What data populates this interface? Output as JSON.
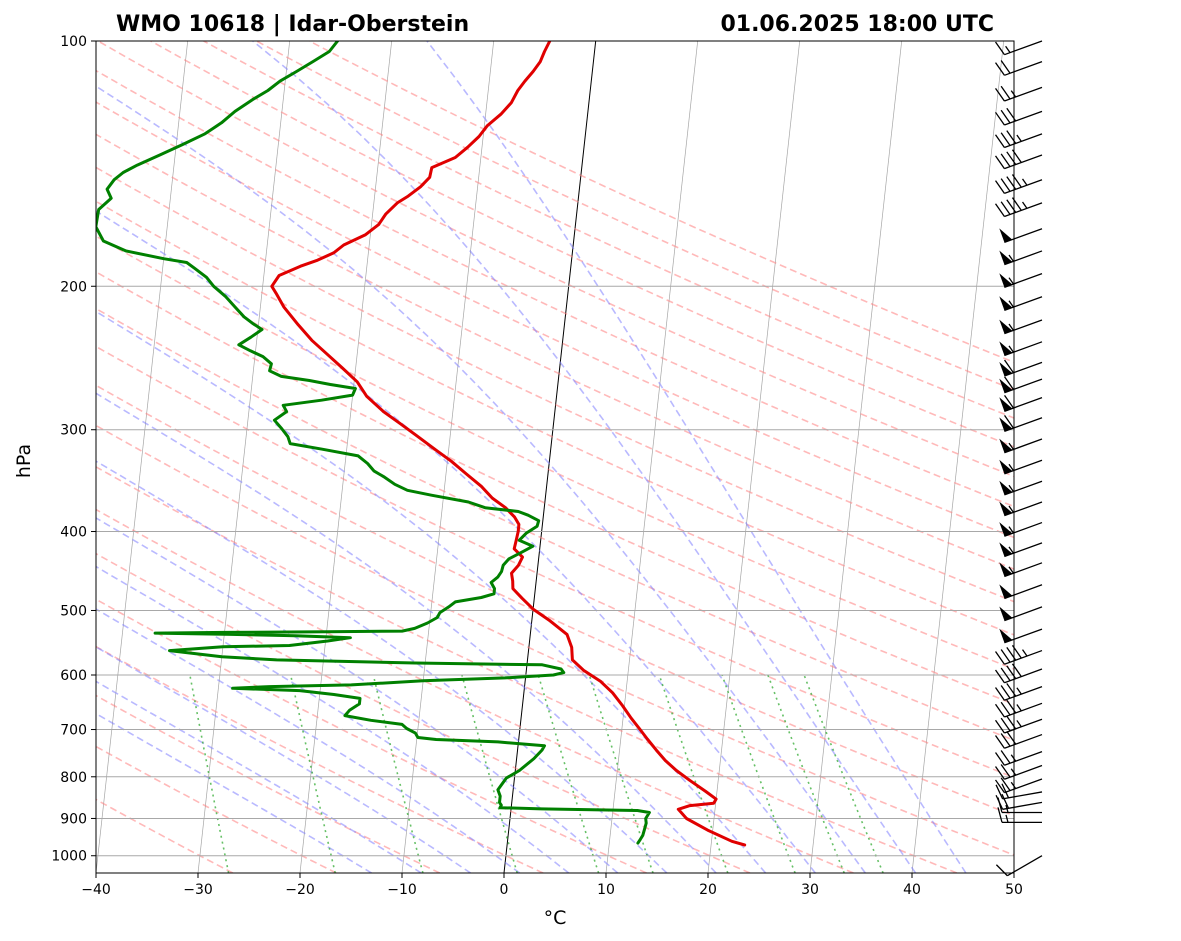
{
  "title_left": "WMO 10618 | Idar-Oberstein",
  "title_right": "01.06.2025 18:00 UTC",
  "chart_data": {
    "type": "line",
    "subtype": "skew-t log-p diagram",
    "xlabel": "°C",
    "ylabel": "hPa",
    "xlim": [
      -40,
      50
    ],
    "ylim": [
      1000,
      100
    ],
    "y_scale": "log",
    "x_ticks": [
      "−40",
      "−30",
      "−20",
      "−10",
      "0",
      "10",
      "20",
      "30",
      "40",
      "50"
    ],
    "y_ticks": [
      "100",
      "200",
      "300",
      "400",
      "500",
      "600",
      "700",
      "800",
      "900",
      "1000"
    ],
    "grid": true,
    "series": [
      {
        "key": "temperature",
        "color": "#e00000",
        "points": [
          [
            23.3,
            970
          ],
          [
            22,
            960
          ],
          [
            19.5,
            930
          ],
          [
            17.3,
            900
          ],
          [
            16.4,
            877
          ],
          [
            17.5,
            868
          ],
          [
            19.8,
            862
          ],
          [
            20,
            852
          ],
          [
            18.9,
            834
          ],
          [
            17.2,
            808
          ],
          [
            15.8,
            786
          ],
          [
            14.6,
            764
          ],
          [
            13.6,
            742
          ],
          [
            12.6,
            719
          ],
          [
            11.7,
            698
          ],
          [
            10.8,
            678
          ],
          [
            9.8,
            654
          ],
          [
            8.7,
            631
          ],
          [
            7.4,
            611
          ],
          [
            5.6,
            592
          ],
          [
            4.4,
            575
          ],
          [
            4.2,
            555
          ],
          [
            3.6,
            535
          ],
          [
            1.8,
            515
          ],
          [
            0,
            498
          ],
          [
            -1.2,
            483
          ],
          [
            -2.2,
            470
          ],
          [
            -2.3,
            460
          ],
          [
            -2.5,
            450
          ],
          [
            -1.9,
            440
          ],
          [
            -1.6,
            430
          ],
          [
            -2.5,
            420
          ],
          [
            -2.4,
            410
          ],
          [
            -2.3,
            400
          ],
          [
            -2.3,
            392
          ],
          [
            -2.8,
            384
          ],
          [
            -3.8,
            374
          ],
          [
            -5.2,
            364
          ],
          [
            -6.4,
            352
          ],
          [
            -8,
            340
          ],
          [
            -9.6,
            328
          ],
          [
            -11.2,
            318
          ],
          [
            -13.3,
            305
          ],
          [
            -15,
            295
          ],
          [
            -16.8,
            285
          ],
          [
            -18.6,
            273
          ],
          [
            -19.7,
            262
          ],
          [
            -21.3,
            252
          ],
          [
            -23,
            242
          ],
          [
            -24.6,
            233
          ],
          [
            -26.1,
            223
          ],
          [
            -27.7,
            212
          ],
          [
            -28.6,
            204
          ],
          [
            -29.1,
            200
          ],
          [
            -28.5,
            194
          ],
          [
            -26.5,
            189
          ],
          [
            -25,
            186
          ],
          [
            -23.4,
            182
          ],
          [
            -22.5,
            178
          ],
          [
            -20.5,
            173
          ],
          [
            -19.3,
            168
          ],
          [
            -18.7,
            163
          ],
          [
            -17.7,
            158
          ],
          [
            -16.7,
            155
          ],
          [
            -15.6,
            151
          ],
          [
            -14.8,
            147
          ],
          [
            -14.7,
            143
          ],
          [
            -12.5,
            139
          ],
          [
            -11.4,
            135
          ],
          [
            -10.4,
            131
          ],
          [
            -9.7,
            127
          ],
          [
            -8.5,
            123
          ],
          [
            -7.6,
            119
          ],
          [
            -7.1,
            115
          ],
          [
            -6.5,
            112
          ],
          [
            -5.8,
            109
          ],
          [
            -5.2,
            106
          ],
          [
            -4.9,
            103
          ],
          [
            -4.5,
            100
          ]
        ]
      },
      {
        "key": "dewpoint",
        "color": "#008000",
        "points": [
          [
            12.8,
            965
          ],
          [
            13,
            955
          ],
          [
            13.2,
            944
          ],
          [
            13.3,
            928
          ],
          [
            13.4,
            912
          ],
          [
            13.3,
            900
          ],
          [
            13.6,
            885
          ],
          [
            12.4,
            880
          ],
          [
            8,
            878
          ],
          [
            3,
            876
          ],
          [
            -1.1,
            873
          ],
          [
            -1,
            867
          ],
          [
            -1.2,
            860
          ],
          [
            -1.2,
            845
          ],
          [
            -1.5,
            830
          ],
          [
            -1.2,
            818
          ],
          [
            -0.8,
            803
          ],
          [
            0.4,
            786
          ],
          [
            1.7,
            760
          ],
          [
            2.4,
            742
          ],
          [
            2.6,
            733
          ],
          [
            -2,
            725
          ],
          [
            -8.1,
            720
          ],
          [
            -9.9,
            716
          ],
          [
            -10.2,
            707
          ],
          [
            -11.1,
            698
          ],
          [
            -11.6,
            690
          ],
          [
            -14.7,
            682
          ],
          [
            -17.3,
            673
          ],
          [
            -16.9,
            663
          ],
          [
            -16,
            651
          ],
          [
            -16,
            641
          ],
          [
            -18.6,
            634
          ],
          [
            -22,
            627
          ],
          [
            -28.6,
            623
          ],
          [
            -25,
            620
          ],
          [
            -17,
            617
          ],
          [
            -10,
            610
          ],
          [
            -2,
            605
          ],
          [
            2.7,
            600
          ],
          [
            3.7,
            596
          ],
          [
            3.4,
            590
          ],
          [
            1.5,
            583
          ],
          [
            -11,
            580
          ],
          [
            -24.6,
            575
          ],
          [
            -30,
            570
          ],
          [
            -35.2,
            560
          ],
          [
            -30,
            554
          ],
          [
            -23.5,
            552
          ],
          [
            -19.8,
            545
          ],
          [
            -17.6,
            540
          ],
          [
            -23,
            537
          ],
          [
            -29.3,
            535
          ],
          [
            -36.8,
            533
          ],
          [
            -30,
            532
          ],
          [
            -20,
            531
          ],
          [
            -12.6,
            530
          ],
          [
            -11.4,
            526
          ],
          [
            -10.2,
            518
          ],
          [
            -9.3,
            510
          ],
          [
            -9.1,
            503
          ],
          [
            -8.3,
            495
          ],
          [
            -7.7,
            488
          ],
          [
            -5.2,
            482
          ],
          [
            -4,
            477
          ],
          [
            -4,
            470
          ],
          [
            -4.4,
            462
          ],
          [
            -3.8,
            455
          ],
          [
            -3.5,
            448
          ],
          [
            -3.4,
            440
          ],
          [
            -2.9,
            432
          ],
          [
            -1.7,
            424
          ],
          [
            -0.7,
            417
          ],
          [
            -2.1,
            410
          ],
          [
            -1.5,
            402
          ],
          [
            -0.5,
            394
          ],
          [
            -0.4,
            388
          ],
          [
            -1.5,
            382
          ],
          [
            -2.5,
            378
          ],
          [
            -5.8,
            374
          ],
          [
            -7.5,
            368
          ],
          [
            -11.2,
            361
          ],
          [
            -13.6,
            356
          ],
          [
            -14.9,
            350
          ],
          [
            -16,
            343
          ],
          [
            -17.1,
            337
          ],
          [
            -17.8,
            330
          ],
          [
            -18.8,
            323
          ],
          [
            -22.4,
            317
          ],
          [
            -25.6,
            312
          ],
          [
            -25.9,
            306
          ],
          [
            -26.6,
            299
          ],
          [
            -27.4,
            292
          ],
          [
            -26.3,
            285
          ],
          [
            -26.7,
            280
          ],
          [
            -23,
            276
          ],
          [
            -20,
            272
          ],
          [
            -19.8,
            267
          ],
          [
            -22.3,
            264
          ],
          [
            -24.4,
            261
          ],
          [
            -27.2,
            258
          ],
          [
            -28.4,
            254
          ],
          [
            -28.3,
            249
          ],
          [
            -29.2,
            244
          ],
          [
            -30.5,
            240
          ],
          [
            -31.7,
            236
          ],
          [
            -30.6,
            231
          ],
          [
            -29.6,
            226
          ],
          [
            -30.6,
            222
          ],
          [
            -31.5,
            218
          ],
          [
            -32.5,
            212
          ],
          [
            -33.5,
            206
          ],
          [
            -34.8,
            200
          ],
          [
            -35.6,
            195
          ],
          [
            -36.9,
            190
          ],
          [
            -37.7,
            187
          ],
          [
            -40,
            185
          ],
          [
            -43.8,
            181
          ],
          [
            -46.1,
            176
          ],
          [
            -47,
            169
          ],
          [
            -46.9,
            161
          ],
          [
            -45.8,
            156
          ],
          [
            -46.3,
            152
          ],
          [
            -45.7,
            148
          ],
          [
            -44.9,
            145
          ],
          [
            -43.6,
            142
          ],
          [
            -41.5,
            138
          ],
          [
            -39.4,
            134
          ],
          [
            -37.3,
            130
          ],
          [
            -35.8,
            126
          ],
          [
            -34.6,
            122
          ],
          [
            -33,
            118
          ],
          [
            -31.6,
            115
          ],
          [
            -30.5,
            112
          ],
          [
            -29,
            109
          ],
          [
            -27.5,
            106
          ],
          [
            -26,
            103
          ],
          [
            -25.3,
            100
          ]
        ]
      }
    ],
    "reference_lines": [
      {
        "kind": "dry adiabats",
        "color": "#ff8080",
        "style": "dashed"
      },
      {
        "kind": "moist adiabats",
        "color": "#8080ff",
        "style": "dashed"
      },
      {
        "kind": "mixing ratio lines",
        "color": "#40b040",
        "style": "dotted"
      },
      {
        "kind": "isotherms",
        "color": "#808080",
        "style": "solid"
      },
      {
        "kind": "0 °C isotherm",
        "color": "#000000",
        "style": "solid"
      }
    ],
    "wind_barbs": [
      {
        "p": 100,
        "speed": 15,
        "dir": 250
      },
      {
        "p": 106,
        "speed": 20,
        "dir": 250
      },
      {
        "p": 114,
        "speed": 25,
        "dir": 250
      },
      {
        "p": 122,
        "speed": 30,
        "dir": 250
      },
      {
        "p": 130,
        "speed": 35,
        "dir": 250
      },
      {
        "p": 138,
        "speed": 40,
        "dir": 250
      },
      {
        "p": 148,
        "speed": 45,
        "dir": 250
      },
      {
        "p": 158,
        "speed": 45,
        "dir": 250
      },
      {
        "p": 170,
        "speed": 50,
        "dir": 250
      },
      {
        "p": 181,
        "speed": 55,
        "dir": 250
      },
      {
        "p": 193,
        "speed": 55,
        "dir": 250
      },
      {
        "p": 206,
        "speed": 55,
        "dir": 250
      },
      {
        "p": 220,
        "speed": 55,
        "dir": 250
      },
      {
        "p": 234,
        "speed": 55,
        "dir": 250
      },
      {
        "p": 248,
        "speed": 60,
        "dir": 250
      },
      {
        "p": 260,
        "speed": 60,
        "dir": 250
      },
      {
        "p": 274,
        "speed": 60,
        "dir": 250
      },
      {
        "p": 290,
        "speed": 60,
        "dir": 250
      },
      {
        "p": 308,
        "speed": 55,
        "dir": 250
      },
      {
        "p": 327,
        "speed": 55,
        "dir": 250
      },
      {
        "p": 347,
        "speed": 55,
        "dir": 250
      },
      {
        "p": 368,
        "speed": 55,
        "dir": 250
      },
      {
        "p": 390,
        "speed": 55,
        "dir": 250
      },
      {
        "p": 413,
        "speed": 55,
        "dir": 250
      },
      {
        "p": 437,
        "speed": 55,
        "dir": 250
      },
      {
        "p": 465,
        "speed": 50,
        "dir": 250
      },
      {
        "p": 495,
        "speed": 50,
        "dir": 250
      },
      {
        "p": 527,
        "speed": 50,
        "dir": 250
      },
      {
        "p": 560,
        "speed": 45,
        "dir": 250
      },
      {
        "p": 590,
        "speed": 40,
        "dir": 250
      },
      {
        "p": 620,
        "speed": 35,
        "dir": 250
      },
      {
        "p": 650,
        "speed": 35,
        "dir": 250
      },
      {
        "p": 680,
        "speed": 35,
        "dir": 250
      },
      {
        "p": 710,
        "speed": 30,
        "dir": 250
      },
      {
        "p": 745,
        "speed": 25,
        "dir": 250
      },
      {
        "p": 775,
        "speed": 25,
        "dir": 250
      },
      {
        "p": 805,
        "speed": 25,
        "dir": 250
      },
      {
        "p": 835,
        "speed": 20,
        "dir": 260
      },
      {
        "p": 860,
        "speed": 20,
        "dir": 260
      },
      {
        "p": 885,
        "speed": 15,
        "dir": 270
      },
      {
        "p": 910,
        "speed": 15,
        "dir": 270
      },
      {
        "p": 1000,
        "speed": 10,
        "dir": 240
      }
    ]
  }
}
